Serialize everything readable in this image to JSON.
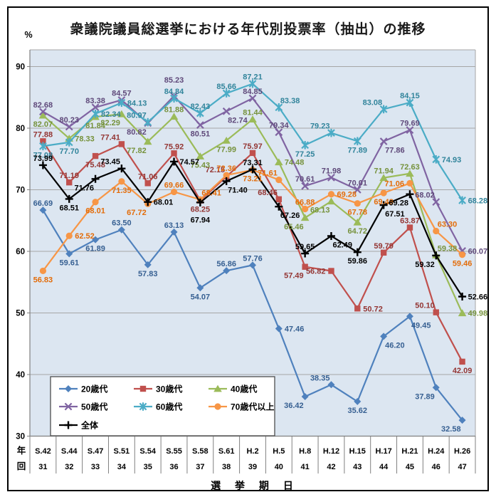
{
  "title": "衆議院議員総選挙における年代別投票率（抽出）の推移",
  "y_axis": {
    "unit": "%",
    "ticks": [
      90,
      80,
      70,
      60,
      50,
      40,
      30
    ]
  },
  "x_axis": {
    "row_headers": [
      "年",
      "回"
    ],
    "title": "選 挙 期 日",
    "categories": [
      {
        "era": "S.42",
        "no": "31"
      },
      {
        "era": "S.44",
        "no": "32"
      },
      {
        "era": "S.47",
        "no": "33"
      },
      {
        "era": "S.51",
        "no": "34"
      },
      {
        "era": "S.54",
        "no": "35"
      },
      {
        "era": "S.55",
        "no": "36"
      },
      {
        "era": "S.58",
        "no": "37"
      },
      {
        "era": "S.61",
        "no": "38"
      },
      {
        "era": "H.2",
        "no": "39"
      },
      {
        "era": "H.5",
        "no": "40"
      },
      {
        "era": "H.8",
        "no": "41"
      },
      {
        "era": "H.12",
        "no": "42"
      },
      {
        "era": "H.15",
        "no": "43"
      },
      {
        "era": "H.17",
        "no": "44"
      },
      {
        "era": "H.21",
        "no": "45"
      },
      {
        "era": "H.24",
        "no": "46"
      },
      {
        "era": "H.26",
        "no": "47"
      }
    ]
  },
  "legend": {
    "items": [
      "20歳代",
      "30歳代",
      "40歳代",
      "50歳代",
      "60歳代",
      "70歳代以上",
      "全体"
    ]
  },
  "colors": {
    "plot_background": "#DCE6F1",
    "gridline": "#A6A6A6",
    "axis_line": "#808080",
    "legend_border": "#4d4d4d"
  },
  "chart_data": {
    "type": "line",
    "title": "衆議院議員総選挙における年代別投票率（抽出）の推移",
    "ylabel": "%",
    "xlabel": "選 挙 期 日",
    "ylim": [
      30,
      93
    ],
    "grid": true,
    "legend_position": "bottom-left-inside",
    "categories": [
      "S.42",
      "S.44",
      "S.47",
      "S.51",
      "S.54",
      "S.55",
      "S.58",
      "S.61",
      "H.2",
      "H.5",
      "H.8",
      "H.12",
      "H.15",
      "H.17",
      "H.21",
      "H.24",
      "H.26"
    ],
    "election_numbers": [
      31,
      32,
      33,
      34,
      35,
      36,
      37,
      38,
      39,
      40,
      41,
      42,
      43,
      44,
      45,
      46,
      47
    ],
    "series": [
      {
        "name": "20歳代",
        "slug": "20s",
        "color": "#4F81BD",
        "label_color": "#376092",
        "marker": "diamond",
        "values": [
          66.69,
          59.61,
          61.89,
          63.5,
          57.83,
          63.13,
          54.07,
          56.86,
          57.76,
          47.46,
          36.42,
          38.35,
          35.62,
          46.2,
          49.45,
          37.89,
          32.58
        ]
      },
      {
        "name": "30歳代",
        "slug": "30s",
        "color": "#C0504D",
        "label_color": "#943634",
        "marker": "square",
        "values": [
          77.88,
          71.19,
          75.48,
          77.41,
          71.06,
          75.92,
          68.25,
          72.15,
          75.97,
          68.46,
          57.49,
          56.82,
          50.72,
          59.79,
          63.87,
          50.1,
          42.09
        ]
      },
      {
        "name": "40歳代",
        "slug": "40s",
        "color": "#9BBB59",
        "label_color": "#76923C",
        "marker": "triangle",
        "values": [
          82.07,
          78.33,
          81.84,
          82.29,
          77.82,
          81.88,
          75.43,
          77.99,
          81.44,
          74.48,
          65.46,
          68.13,
          64.72,
          71.94,
          72.63,
          59.38,
          49.98
        ]
      },
      {
        "name": "50歳代",
        "slug": "50s",
        "color": "#8064A2",
        "label_color": "#5F497A",
        "marker": "x",
        "values": [
          82.68,
          80.23,
          83.38,
          84.57,
          80.82,
          85.23,
          80.51,
          82.74,
          84.85,
          79.34,
          70.61,
          71.98,
          70.01,
          77.86,
          79.69,
          68.02,
          60.07
        ]
      },
      {
        "name": "60歳代",
        "slug": "60s",
        "color": "#4BACC6",
        "label_color": "#31849B",
        "marker": "asterisk",
        "values": [
          77.08,
          77.7,
          82.34,
          84.13,
          80.97,
          84.84,
          82.43,
          85.66,
          87.21,
          83.38,
          77.25,
          79.23,
          77.89,
          83.08,
          84.15,
          74.93,
          68.28
        ]
      },
      {
        "name": "70歳代以上",
        "slug": "70s-plus",
        "color": "#F79646",
        "label_color": "#E36C09",
        "marker": "circle",
        "values": [
          56.83,
          62.52,
          68.01,
          71.35,
          67.72,
          69.66,
          68.41,
          72.36,
          73.21,
          71.61,
          66.88,
          69.28,
          67.78,
          69.48,
          71.06,
          63.3,
          59.46
        ]
      },
      {
        "name": "全体",
        "slug": "overall",
        "color": "#000000",
        "label_color": "#000000",
        "marker": "plus",
        "values": [
          73.99,
          68.51,
          71.76,
          73.45,
          68.01,
          74.57,
          67.94,
          71.4,
          73.31,
          67.26,
          59.65,
          62.49,
          59.86,
          67.51,
          69.28,
          59.32,
          52.66
        ]
      }
    ]
  }
}
